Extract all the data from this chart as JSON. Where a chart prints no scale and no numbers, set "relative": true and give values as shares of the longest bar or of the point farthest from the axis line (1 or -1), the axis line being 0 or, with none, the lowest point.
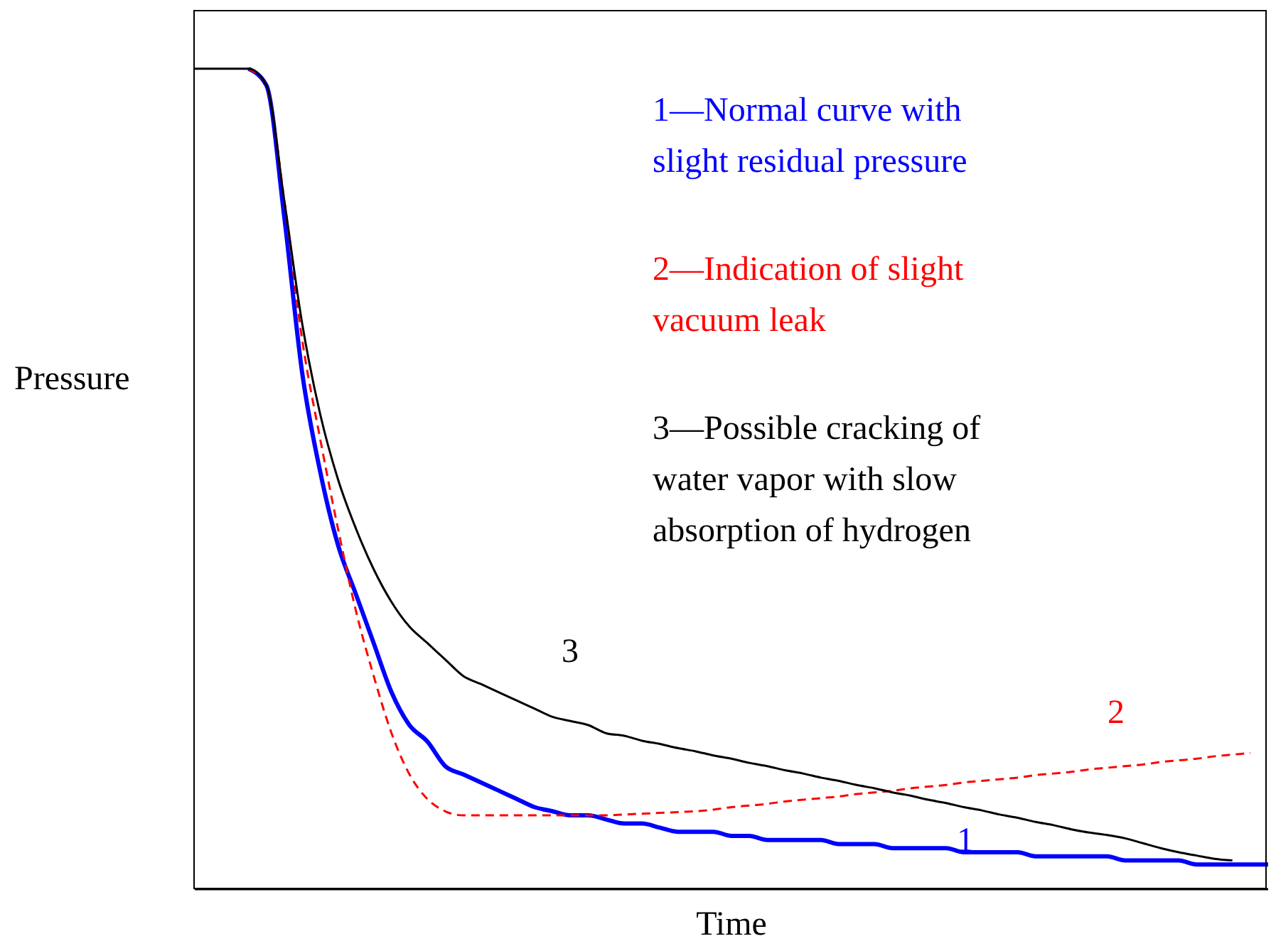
{
  "chart_data": {
    "type": "line",
    "relative": true,
    "xlabel": "Time",
    "ylabel": "Pressure",
    "legend": "top right",
    "grid": false,
    "marker": "none",
    "categories": [
      null,
      null,
      null,
      null,
      null,
      null,
      null,
      null,
      null,
      null,
      null,
      null,
      null,
      null,
      null,
      null,
      null,
      null,
      null,
      null,
      null,
      null,
      null,
      null,
      null,
      null,
      null,
      null,
      null,
      null,
      null,
      null,
      null,
      null,
      null,
      null,
      null,
      null,
      null,
      null,
      null,
      null,
      null,
      null,
      null,
      null,
      null,
      null,
      null,
      null,
      null,
      null,
      null,
      null,
      null,
      null,
      null,
      null,
      null,
      null,
      null
    ],
    "series": [
      {
        "name": "1—Normal curve with slight residual pressure",
        "color": "#0000ff",
        "line_style": "solid",
        "values": [
          null,
          null,
          null,
          1,
          0.98,
          0.82,
          0.63,
          0.51,
          0.42,
          0.36,
          0.3,
          0.24,
          0.2,
          0.18,
          0.15,
          0.14,
          0.13,
          0.12,
          0.11,
          0.1,
          0.095,
          0.09,
          0.09,
          0.085,
          0.08,
          0.08,
          0.075,
          0.07,
          0.07,
          0.07,
          0.065,
          0.065,
          0.06,
          0.06,
          0.06,
          0.06,
          0.055,
          0.055,
          0.055,
          0.05,
          0.05,
          0.05,
          0.05,
          0.045,
          0.045,
          0.045,
          0.045,
          0.04,
          0.04,
          0.04,
          0.04,
          0.04,
          0.035,
          0.035,
          0.035,
          0.035,
          0.03,
          0.03,
          0.03,
          0.03,
          0.03
        ]
      },
      {
        "name": "2—Indication of slight vacuum leak",
        "color": "#ff0000",
        "line_style": "dashed",
        "values": [
          null,
          null,
          null,
          1,
          0.98,
          0.84,
          0.67,
          0.55,
          0.44,
          0.34,
          0.26,
          0.19,
          0.14,
          0.11,
          0.095,
          0.09,
          0.09,
          0.09,
          0.09,
          0.09,
          0.09,
          0.09,
          0.09,
          0.09,
          0.091,
          0.092,
          0.093,
          0.094,
          0.095,
          0.097,
          0.1,
          0.102,
          0.104,
          0.107,
          0.109,
          0.111,
          0.113,
          0.116,
          0.118,
          0.12,
          0.123,
          0.125,
          0.127,
          0.13,
          0.132,
          0.134,
          0.136,
          0.139,
          0.141,
          0.143,
          0.146,
          0.148,
          0.15,
          0.152,
          0.155,
          0.157,
          0.159,
          0.162,
          0.164,
          0.166,
          null
        ]
      },
      {
        "name": "3—Possible cracking of water vapor with slow absorption of hydrogen",
        "color": "#000000",
        "line_style": "solid",
        "values": [
          1,
          1,
          1,
          1,
          0.98,
          0.84,
          0.69,
          0.58,
          0.5,
          0.44,
          0.39,
          0.35,
          0.32,
          0.3,
          0.28,
          0.26,
          0.25,
          0.24,
          0.23,
          0.22,
          0.21,
          0.205,
          0.2,
          0.19,
          0.187,
          0.181,
          0.177,
          0.172,
          0.168,
          0.163,
          0.159,
          0.154,
          0.15,
          0.145,
          0.141,
          0.136,
          0.132,
          0.127,
          0.123,
          0.118,
          0.114,
          0.109,
          0.105,
          0.1,
          0.096,
          0.091,
          0.087,
          0.082,
          0.078,
          0.073,
          0.069,
          0.066,
          0.062,
          0.056,
          0.05,
          0.045,
          0.041,
          0.037,
          0.035,
          null,
          null
        ]
      }
    ],
    "annotations": [
      "3",
      "2",
      "1"
    ]
  }
}
